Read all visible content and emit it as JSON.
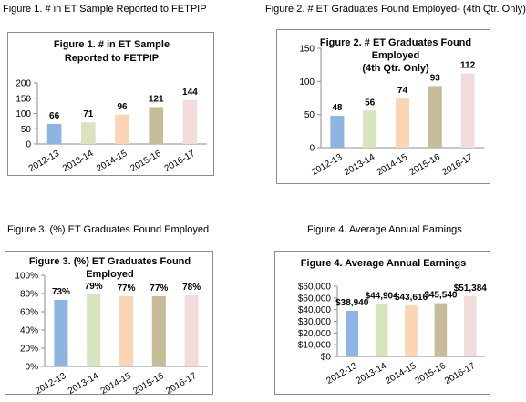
{
  "captions": [
    "Figure 1. # in ET Sample Reported to FETPIP",
    "Figure 2. # ET Graduates Found Employed- (4th Qtr. Only)",
    "Figure 3. (%) ET Graduates Found Employed",
    "Figure 4. Average Annual Earnings"
  ],
  "colors": [
    "#8eb4e3",
    "#d7e4bd",
    "#fcd5b5",
    "#c4bd97",
    "#f2dcdb"
  ],
  "chart_data": [
    {
      "type": "bar",
      "title_lines": [
        "Figure 1. # in ET Sample",
        "Reported to FETPIP"
      ],
      "categories": [
        "2012-13",
        "2013-14",
        "2014-15",
        "2015-16",
        "2016-17"
      ],
      "values": [
        66,
        71,
        96,
        121,
        144
      ],
      "data_labels": [
        "66",
        "71",
        "96",
        "121",
        "144"
      ],
      "yticks": [
        0,
        50,
        100,
        150,
        200
      ],
      "ytick_labels": [
        "0",
        "50",
        "100",
        "150",
        "200"
      ],
      "ylim": [
        0,
        200
      ],
      "grid": false,
      "legend": "none"
    },
    {
      "type": "bar",
      "title_lines": [
        "Figure 2. # ET Graduates Found",
        "Employed",
        "(4th Qtr. Only)"
      ],
      "categories": [
        "2012-13",
        "2013-14",
        "2014-15",
        "2015-16",
        "2016-17"
      ],
      "values": [
        48,
        56,
        74,
        93,
        112
      ],
      "data_labels": [
        "48",
        "56",
        "74",
        "93",
        "112"
      ],
      "yticks": [
        0,
        50,
        100,
        150
      ],
      "ytick_labels": [
        "0",
        "50",
        "100",
        "150"
      ],
      "ylim": [
        0,
        150
      ],
      "grid": false,
      "legend": "none"
    },
    {
      "type": "bar",
      "title_lines": [
        "Figure 3. (%) ET Graduates Found",
        "Employed"
      ],
      "categories": [
        "2012-13",
        "2013-14",
        "2014-15",
        "2015-16",
        "2016-17"
      ],
      "values": [
        73,
        79,
        77,
        77,
        78
      ],
      "data_labels": [
        "73%",
        "79%",
        "77%",
        "77%",
        "78%"
      ],
      "yticks": [
        0,
        20,
        40,
        60,
        80,
        100
      ],
      "ytick_labels": [
        "0%",
        "20%",
        "40%",
        "60%",
        "80%",
        "100%"
      ],
      "ylim": [
        0,
        100
      ],
      "grid": false,
      "legend": "none"
    },
    {
      "type": "bar",
      "title_lines": [
        "Figure 4. Average Annual Earnings"
      ],
      "categories": [
        "2012-13",
        "2013-14",
        "2014-15",
        "2015-16",
        "2016-17"
      ],
      "values": [
        38940,
        44904,
        43616,
        45540,
        51384
      ],
      "data_labels": [
        "$38,940",
        "$44,904",
        "$43,616",
        "$45,540",
        "$51,384"
      ],
      "yticks": [
        0,
        10000,
        20000,
        30000,
        40000,
        50000,
        60000
      ],
      "ytick_labels": [
        "$0",
        "$10,000",
        "$20,000",
        "$30,000",
        "$40,000",
        "$50,000",
        "$60,000"
      ],
      "ylim": [
        0,
        60000
      ],
      "grid": false,
      "legend": "none"
    }
  ]
}
